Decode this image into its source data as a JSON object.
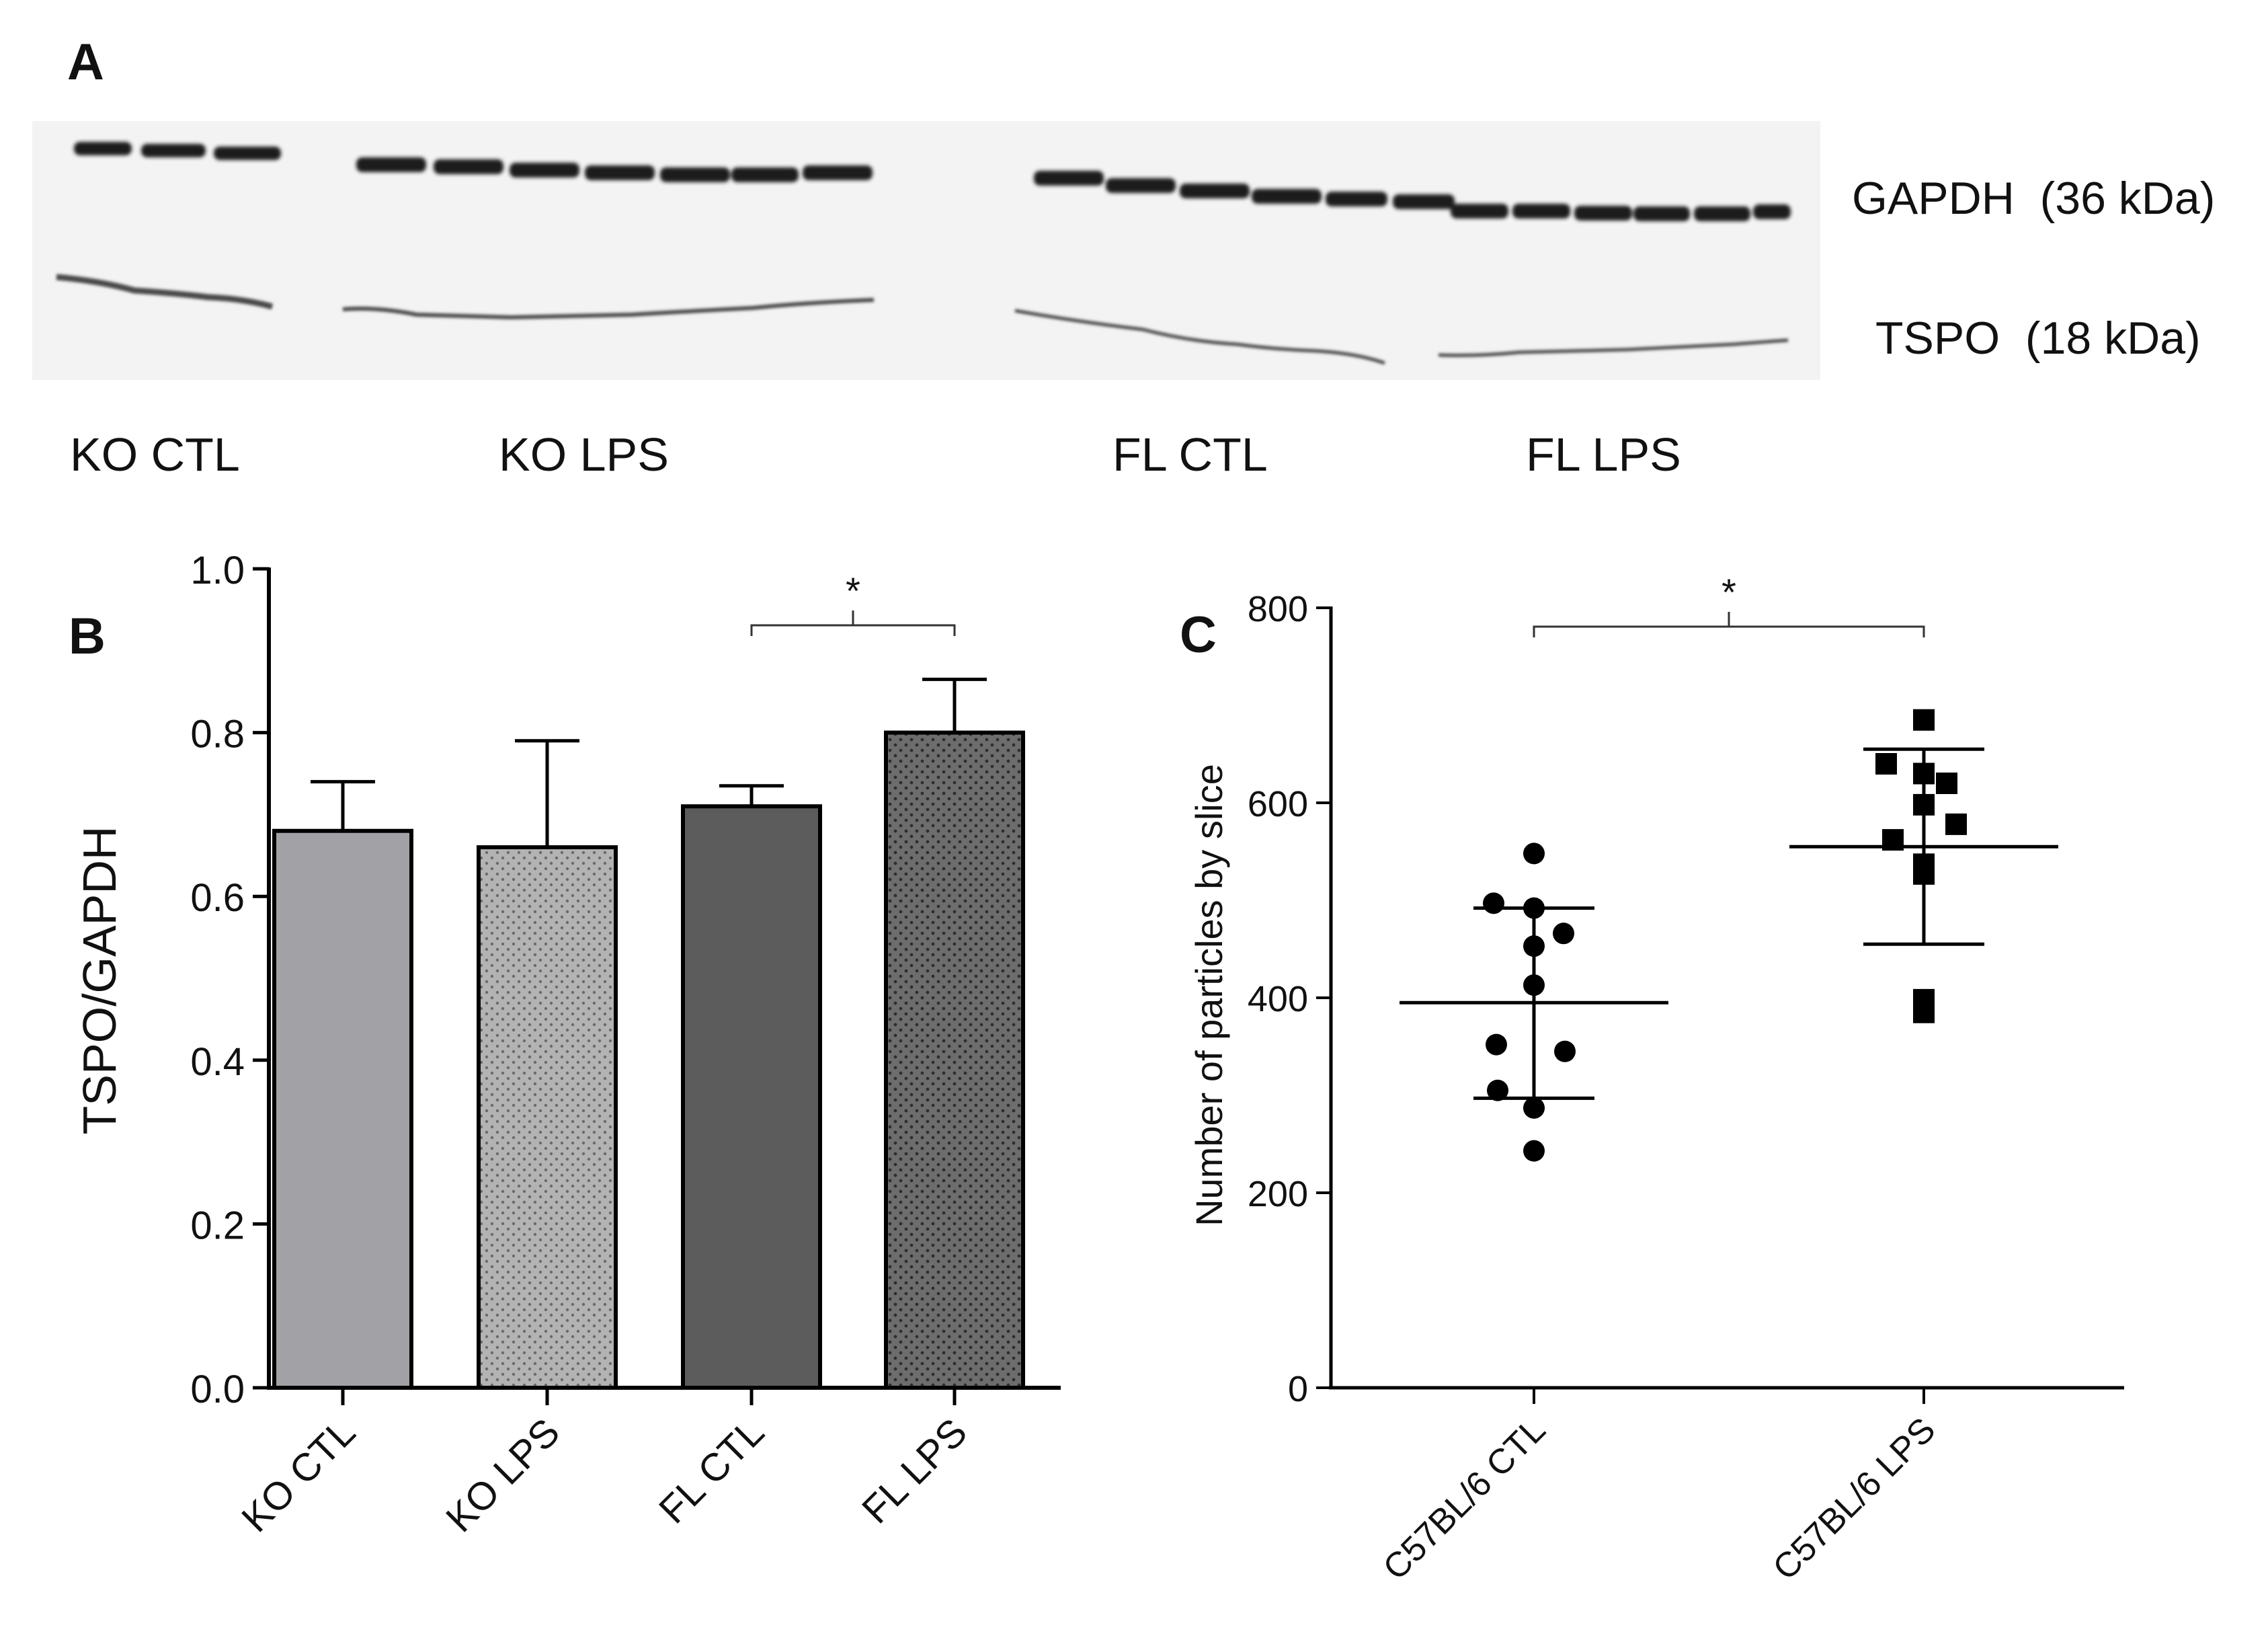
{
  "panel_labels": {
    "a": "A",
    "b": "B",
    "c": "C"
  },
  "blot": {
    "markers": [
      "GAPDH  (36 kDa)",
      "TSPO  (18 kDa)"
    ],
    "groups": [
      "KO CTL",
      "KO LPS",
      "FL CTL",
      "FL LPS"
    ]
  },
  "colors": {
    "ko_ctl": "#a2a1a6",
    "ko_lps": "#b4b4b4",
    "fl_ctl": "#5c5c5c",
    "fl_lps": "#6b6b6b",
    "ink": "#000000"
  },
  "chart_data": [
    {
      "type": "bar",
      "panel": "B",
      "title": "",
      "xlabel": "",
      "ylabel": "TSPO/GAPDH",
      "categories": [
        "KO CTL",
        "KO LPS",
        "FL CTL",
        "FL LPS"
      ],
      "values": [
        0.68,
        0.66,
        0.71,
        0.8
      ],
      "error_upper": [
        0.06,
        0.13,
        0.025,
        0.065
      ],
      "ylim": [
        0,
        1.0
      ],
      "yticks": [
        "0.0",
        "0.2",
        "0.4",
        "0.6",
        "0.8",
        "1.0"
      ],
      "ytick_values": [
        0,
        0.2,
        0.4,
        0.6,
        0.8,
        1.0
      ],
      "significance": {
        "between": [
          "FL CTL",
          "FL LPS"
        ],
        "label": "*"
      }
    },
    {
      "type": "scatter",
      "panel": "C",
      "title": "",
      "xlabel": "",
      "ylabel": "Number of particles by slice",
      "categories": [
        "C57BL/6 CTL",
        "C57BL/6 LPS"
      ],
      "ylim": [
        0,
        800
      ],
      "yticks": [
        "0",
        "200",
        "400",
        "600",
        "800"
      ],
      "ytick_values": [
        0,
        200,
        400,
        600,
        800
      ],
      "series": [
        {
          "name": "C57BL/6 CTL",
          "marker": "circle",
          "values": [
            548,
            497,
            492,
            466,
            453,
            413,
            352,
            345,
            305,
            287,
            243
          ],
          "mean": 395,
          "sd_low": 297,
          "sd_high": 492
        },
        {
          "name": "C57BL/6 LPS",
          "marker": "square",
          "values": [
            685,
            640,
            630,
            620,
            598,
            578,
            562,
            537,
            527,
            398,
            385
          ],
          "mean": 555,
          "sd_low": 455,
          "sd_high": 655
        }
      ],
      "significance": {
        "between": [
          "C57BL/6 CTL",
          "C57BL/6 LPS"
        ],
        "label": "*"
      }
    }
  ]
}
